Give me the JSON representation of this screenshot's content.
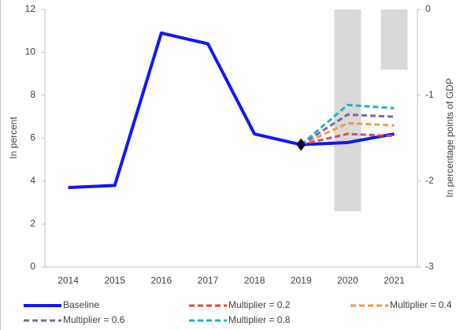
{
  "chart_data": {
    "type": "line",
    "categories": [
      "2014",
      "2015",
      "2016",
      "2017",
      "2018",
      "2019",
      "2020",
      "2021"
    ],
    "y_label": "In percent",
    "y2_label": "In percentage points of GDP",
    "ylim": [
      0,
      12
    ],
    "yticks": [
      0,
      2,
      4,
      6,
      8,
      10,
      12
    ],
    "y2lim": [
      -3,
      0
    ],
    "y2ticks": [
      0,
      -1,
      -2,
      -3
    ],
    "series": [
      {
        "name": "Baseline",
        "color": "#1414ff",
        "dash": false,
        "marker": "diamond",
        "values": [
          3.7,
          3.8,
          10.9,
          10.4,
          6.2,
          5.7,
          5.8,
          6.2
        ]
      },
      {
        "name": "Multiplier = 0.2",
        "color": "#e0483a",
        "dash": true,
        "values": [
          null,
          null,
          null,
          null,
          null,
          5.7,
          6.2,
          6.1
        ]
      },
      {
        "name": "Multiplier = 0.4",
        "color": "#f79646",
        "dash": true,
        "values": [
          null,
          null,
          null,
          null,
          null,
          5.7,
          6.7,
          6.6
        ]
      },
      {
        "name": "Multiplier = 0.6",
        "color": "#8064a2",
        "dash": true,
        "values": [
          null,
          null,
          null,
          null,
          null,
          5.7,
          7.1,
          7.0
        ]
      },
      {
        "name": "Multiplier = 0.8",
        "color": "#1fb4c0",
        "dash": true,
        "values": [
          null,
          null,
          null,
          null,
          null,
          5.7,
          7.55,
          7.4
        ]
      }
    ],
    "bars": {
      "color": "#d9d9d9",
      "axis": "y2",
      "values": [
        null,
        null,
        null,
        null,
        null,
        null,
        -2.35,
        -0.7
      ]
    }
  }
}
